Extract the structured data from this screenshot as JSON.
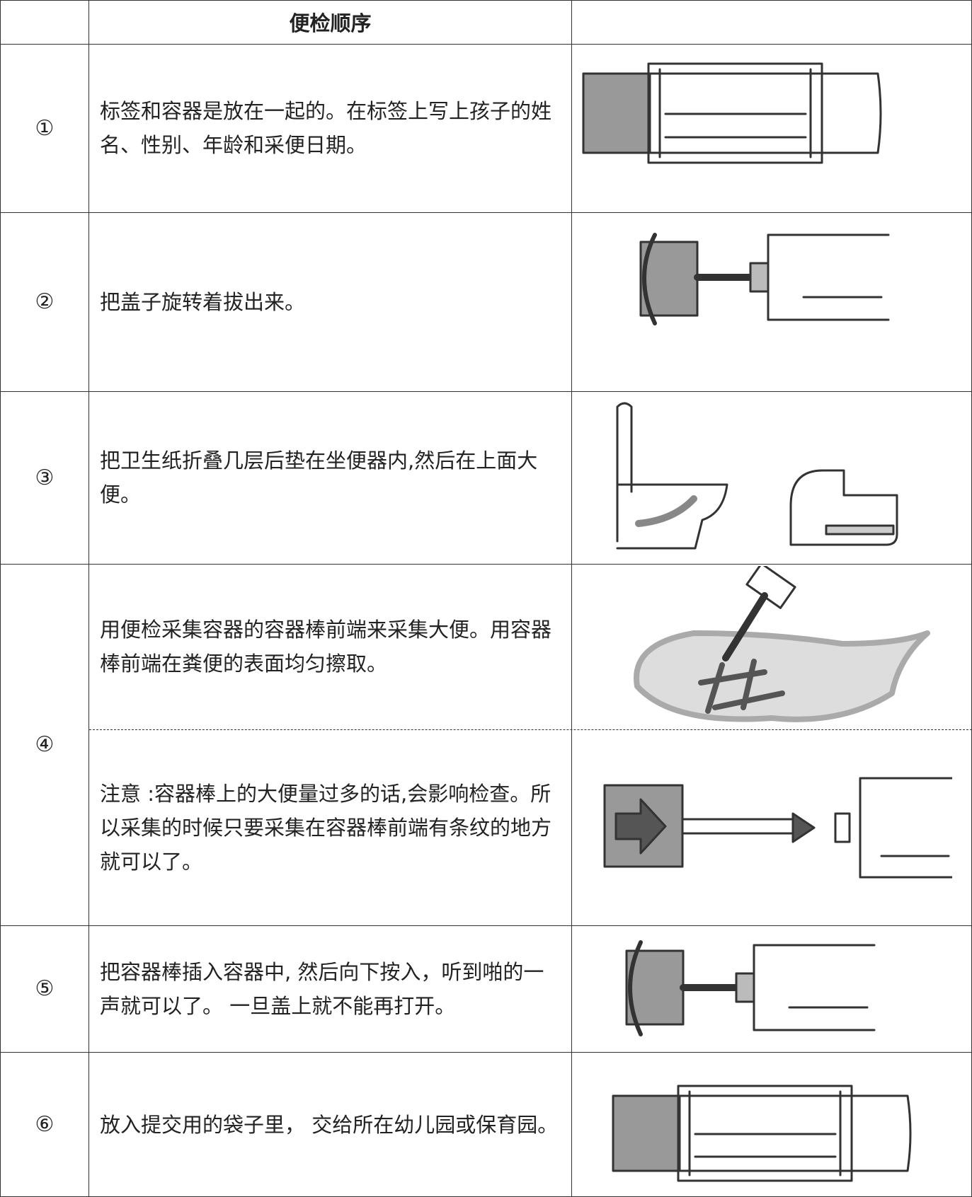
{
  "header": {
    "title": "便检顺序"
  },
  "steps": [
    {
      "number": "①",
      "text": "标签和容器是放在一起的。在标签上写上孩子的姓名、性别、年龄和采便日期。"
    },
    {
      "number": "②",
      "text": "把盖子旋转着拔出来。"
    },
    {
      "number": "③",
      "text": "把卫生纸折叠几层后垫在坐便器内,然后在上面大便。"
    },
    {
      "number": "④",
      "text": "用便检采集容器的容器棒前端来采集大便。用容器棒前端在粪便的表面均匀擦取。",
      "note": "注意 :容器棒上的大便量过多的话,会影响检查。所以采集的时候只要采集在容器棒前端有条纹的地方就可以了。"
    },
    {
      "number": "⑤",
      "text": "把容器棒插入容器中, 然后向下按入，听到啪的一声就可以了。 一旦盖上就不能再打开。"
    },
    {
      "number": "⑥",
      "text": "放入提交用的袋子里， 交给所在幼儿园或保育园。"
    }
  ]
}
